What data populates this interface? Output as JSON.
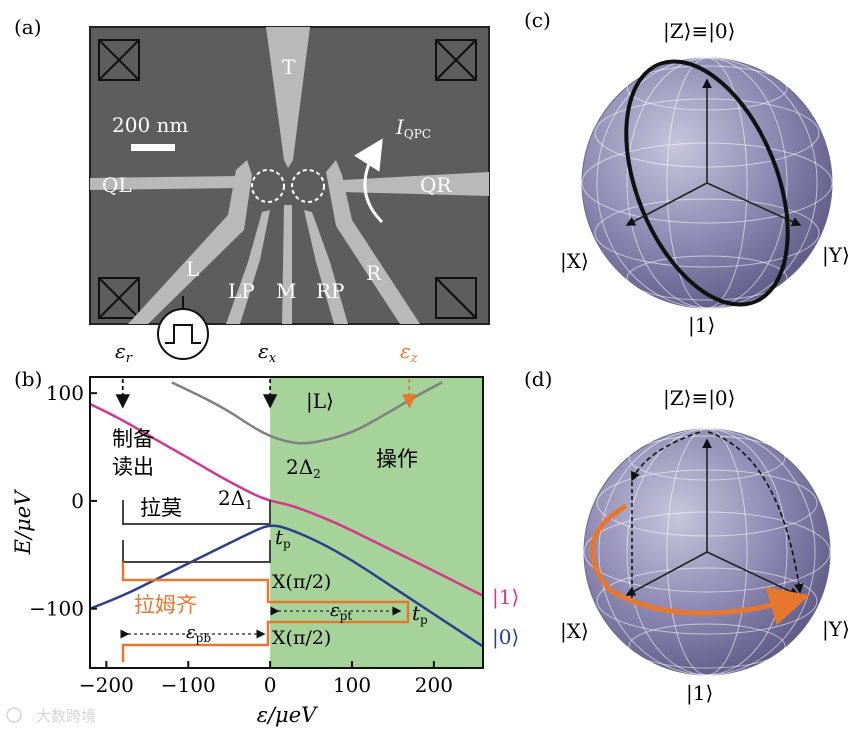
{
  "panel_a": {
    "label": "(a)",
    "scale_bar": "200 nm",
    "gates": {
      "T": "T",
      "QL": "QL",
      "QR": "QR",
      "L": "L",
      "LP": "LP",
      "M": "M",
      "RP": "RP",
      "R": "R"
    },
    "current_label_main": "I",
    "current_label_sub": "QPC",
    "eps_r": "ε",
    "eps_r_sub": "r",
    "eps_x": "ε",
    "eps_x_sub": "x",
    "eps_z": "ε",
    "eps_z_sub": "z"
  },
  "panel_b": {
    "label": "(b)",
    "state_L": "|L⟩",
    "state_1": "|1⟩",
    "state_0": "|0⟩",
    "delta2": "2Δ",
    "delta2_sub": "2",
    "delta1": "2Δ",
    "delta1_sub": "1",
    "prep_read_1": "制备",
    "prep_read_2": "读出",
    "operate": "操作",
    "larmor": "拉莫",
    "ramsey": "拉姆齐",
    "tp_1": "t",
    "tp_1_sub": "p",
    "tp_2": "t",
    "tp_2_sub": "p",
    "x_pi2_1": "X(π/2)",
    "x_pi2_2": "X(π/2)",
    "eps_pt": "ε",
    "eps_pt_sub": "pt",
    "eps_pb": "ε",
    "eps_pb_sub": "pb"
  },
  "chart_data": {
    "type": "line",
    "xlabel": "ε/μeV",
    "ylabel": "E/μeV",
    "xlim": [
      -220,
      260
    ],
    "ylim": [
      -155,
      115
    ],
    "x_ticks": [
      -200,
      -100,
      0,
      100,
      200
    ],
    "y_ticks": [
      -100,
      0,
      100
    ],
    "x_tick_labels": [
      "−200",
      "−100",
      "0",
      "100",
      "200"
    ],
    "y_tick_labels": [
      "−100",
      "0",
      "100"
    ],
    "shaded_region": {
      "x_from": 0,
      "x_to": 260,
      "color": "#a6d39a"
    },
    "series": [
      {
        "name": "|L⟩",
        "color": "#808080",
        "x": [
          -120,
          -60,
          -20,
          0,
          20,
          40,
          60,
          100,
          140,
          180,
          210
        ],
        "y": [
          110,
          88,
          68,
          60,
          55,
          53,
          55,
          63,
          80,
          98,
          110
        ]
      },
      {
        "name": "|1⟩",
        "color": "#d4358f",
        "x": [
          -220,
          -180,
          -140,
          -100,
          -60,
          -20,
          0,
          20,
          40,
          80,
          120,
          160,
          200,
          260
        ],
        "y": [
          90,
          75,
          57,
          40,
          22,
          6,
          0,
          -3,
          -8,
          -20,
          -35,
          -50,
          -65,
          -88
        ]
      },
      {
        "name": "|0⟩",
        "color": "#2b3f8c",
        "x": [
          -220,
          -180,
          -140,
          -100,
          -60,
          -20,
          0,
          20,
          60,
          100,
          140,
          180,
          220,
          260
        ],
        "y": [
          -100,
          -88,
          -73,
          -58,
          -43,
          -28,
          -22,
          -25,
          -38,
          -55,
          -75,
          -95,
          -115,
          -135
        ]
      }
    ],
    "markers": [
      {
        "label": "εr",
        "x": -180,
        "color": "#111111"
      },
      {
        "label": "εx",
        "x": 0,
        "color": "#111111"
      },
      {
        "label": "εz",
        "x": 170,
        "color": "#e8772e"
      }
    ]
  },
  "panel_c": {
    "label": "(c)",
    "top": "|Z⟩≡|0⟩",
    "bottom": "|1⟩",
    "left": "|X⟩",
    "right": "|Y⟩"
  },
  "panel_d": {
    "label": "(d)",
    "top": "|Z⟩≡|0⟩",
    "bottom": "|1⟩",
    "left": "|X⟩",
    "right": "|Y⟩"
  },
  "watermark": "大数跨境",
  "colors": {
    "sem_bg": "#5d5d5d",
    "gate": "#b9b9b9",
    "green": "#a6d39a",
    "magenta": "#d4358f",
    "navy": "#2b3f8c",
    "orange": "#e8772e",
    "sphere": "#8a86b0"
  }
}
